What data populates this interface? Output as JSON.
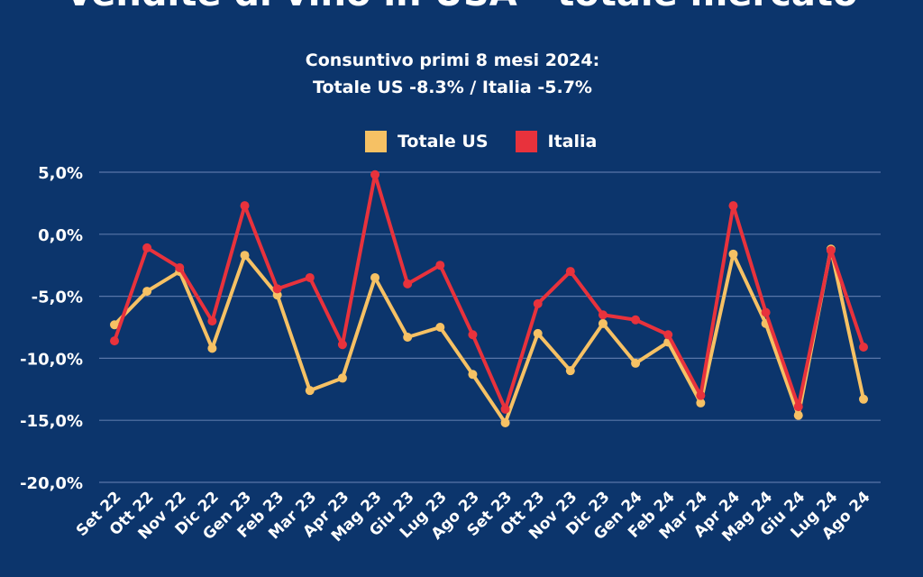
{
  "chart_data": {
    "type": "line",
    "title": "Vendite di vino in USA - totale mercato",
    "subtitle_lines": [
      "Consuntivo primi 8 mesi 2024:",
      "Totale US -8.3% / Italia -5.7%"
    ],
    "xlabel": "",
    "ylabel": "",
    "categories": [
      "Set 22",
      "Ott 22",
      "Nov 22",
      "Dic 22",
      "Gen 23",
      "Feb 23",
      "Mar 23",
      "Apr 23",
      "Mag 23",
      "Giu 23",
      "Lug 23",
      "Ago 23",
      "Set 23",
      "Ott 23",
      "Nov 23",
      "Dic 23",
      "Gen 24",
      "Feb 24",
      "Mar 24",
      "Apr 24",
      "Mag 24",
      "Giu 24",
      "Lug 24",
      "Ago 24"
    ],
    "ylim": [
      -20,
      5
    ],
    "yticks": [
      5,
      0,
      -5,
      -10,
      -15,
      -20
    ],
    "ytick_labels": [
      "5,0%",
      "0,0%",
      "-5,0%",
      "-10,0%",
      "-15,0%",
      "-20,0%"
    ],
    "grid": true,
    "legend_position": "top",
    "series": [
      {
        "name": "Totale US",
        "color": "#f6c164",
        "values": [
          -7.3,
          -4.6,
          -3.0,
          -9.2,
          -1.7,
          -4.9,
          -12.6,
          -11.6,
          -3.5,
          -8.3,
          -7.5,
          -11.3,
          -15.2,
          -8.0,
          -11.0,
          -7.2,
          -10.4,
          -8.7,
          -13.6,
          -1.6,
          -7.2,
          -14.6,
          -1.2,
          -13.3
        ]
      },
      {
        "name": "Italia",
        "color": "#e8323c",
        "values": [
          -8.6,
          -1.1,
          -2.7,
          -7.0,
          2.3,
          -4.4,
          -3.5,
          -8.9,
          4.8,
          -4.0,
          -2.5,
          -8.1,
          -14.1,
          -5.6,
          -3.0,
          -6.5,
          -6.9,
          -8.1,
          -13.0,
          2.3,
          -6.3,
          -13.9,
          -1.3,
          -9.1
        ]
      }
    ]
  },
  "colors": {
    "background": "#0c356c",
    "grid": "#5876a8",
    "text": "#ffffff"
  }
}
